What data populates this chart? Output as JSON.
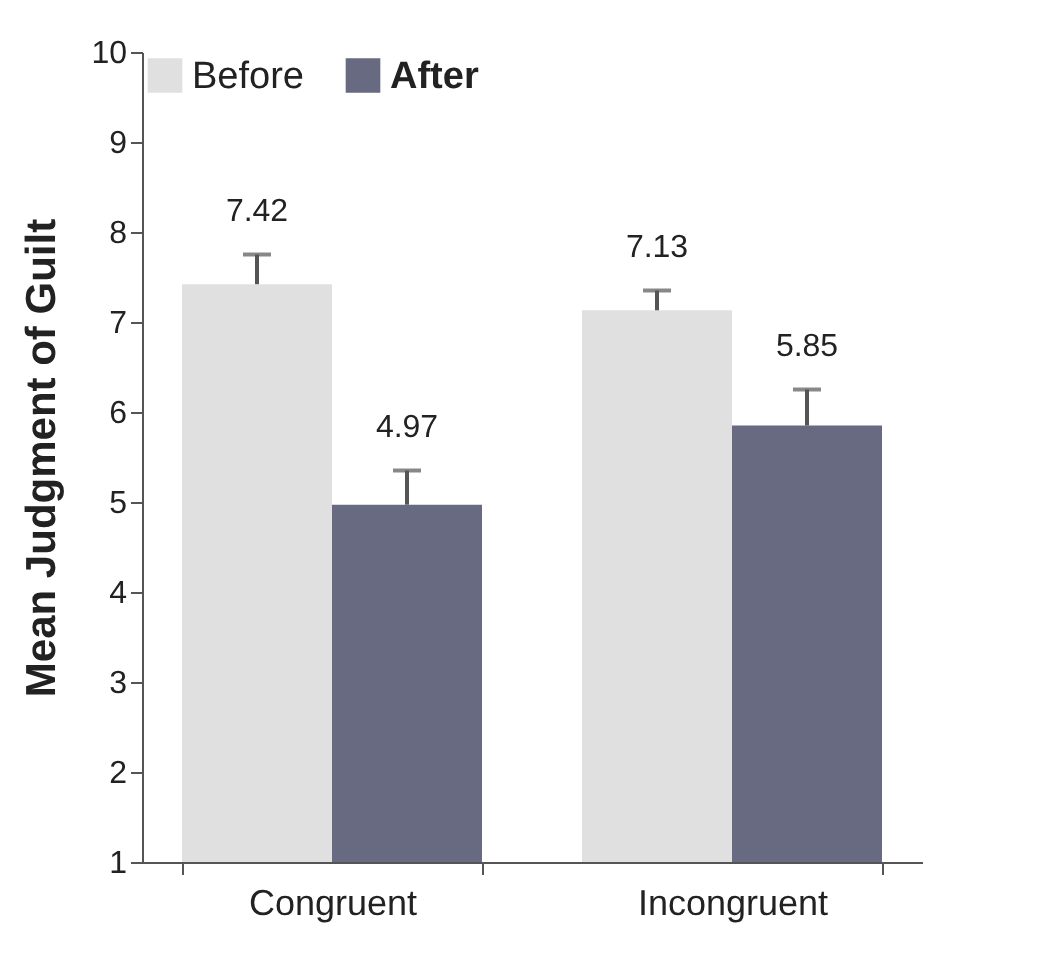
{
  "chart_data": {
    "type": "bar",
    "ylabel": "Mean Judgment of Guilt",
    "categories": [
      "Congruent",
      "Incongruent"
    ],
    "series": [
      {
        "name": "Before",
        "color": "#e0e0e0",
        "values": [
          7.42,
          7.13
        ],
        "errors": [
          [
            7.42,
            7.75
          ],
          [
            7.13,
            7.35
          ]
        ]
      },
      {
        "name": "After",
        "color": "#676a80",
        "values": [
          4.97,
          5.85
        ],
        "errors": [
          [
            4.97,
            5.35
          ],
          [
            5.85,
            6.25
          ]
        ]
      }
    ],
    "ylim": [
      1,
      10
    ],
    "yticks": [
      1,
      2,
      3,
      4,
      5,
      6,
      7,
      8,
      9,
      10
    ],
    "grid": false,
    "legend": "top left",
    "data_labels": true
  }
}
